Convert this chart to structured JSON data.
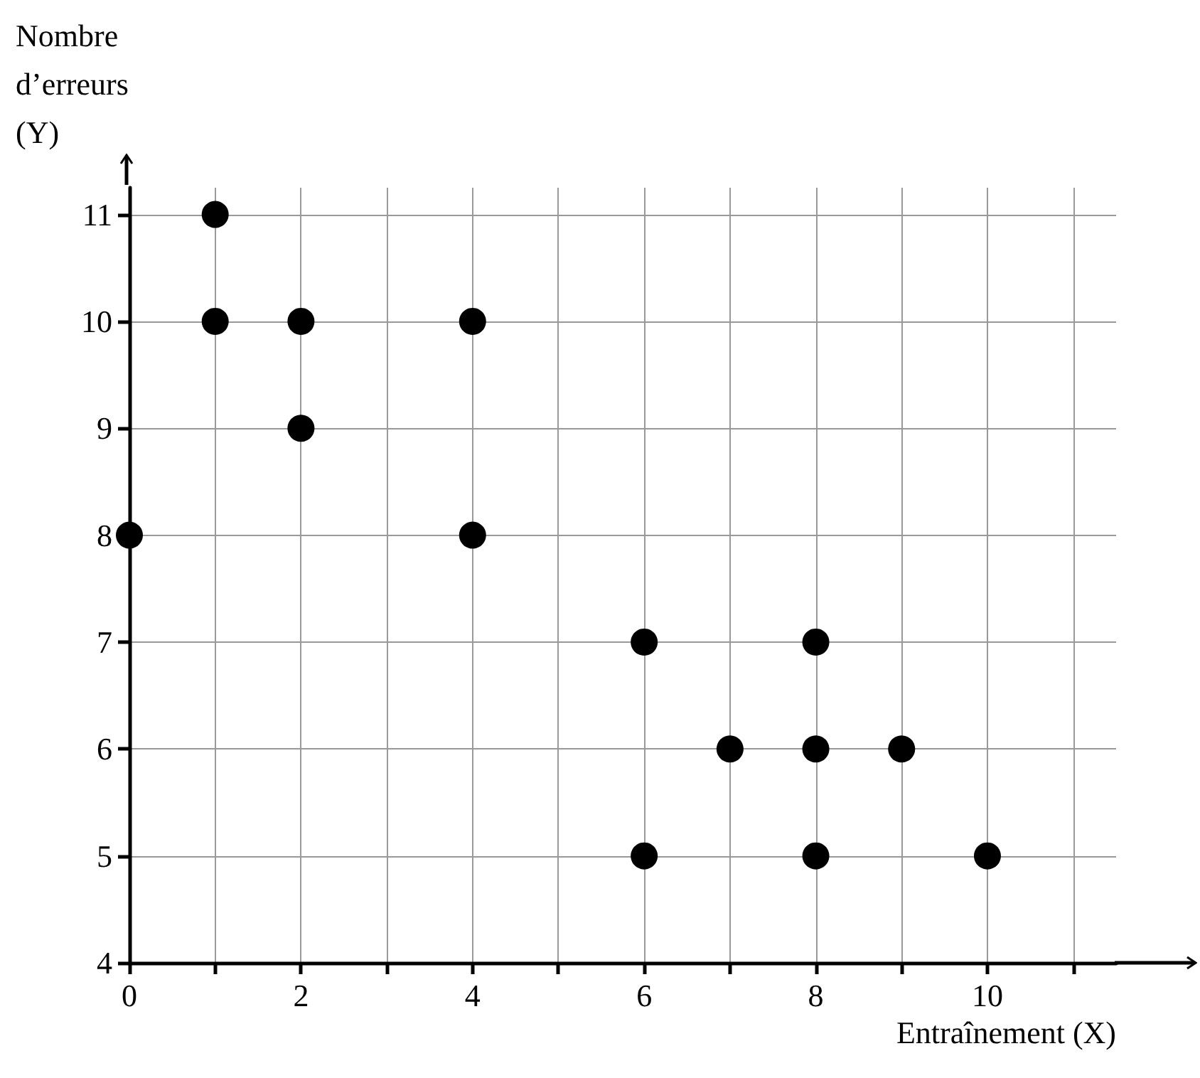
{
  "chart_data": {
    "type": "scatter",
    "xlabel": "Entraînement (X)",
    "ylabel": "Nombre\nd’erreurs\n(Y)",
    "x": [
      0,
      1,
      1,
      2,
      2,
      4,
      4,
      6,
      6,
      7,
      8,
      8,
      8,
      9,
      10
    ],
    "values": [
      8,
      11,
      10,
      10,
      9,
      10,
      8,
      7,
      5,
      6,
      7,
      6,
      5,
      6,
      5
    ],
    "color": "#000000",
    "marker": "circle",
    "xlim": [
      0,
      11.5
    ],
    "xticks": [
      0,
      {
        "value": 1,
        "label": null
      },
      2,
      {
        "value": 3,
        "label": null
      },
      4,
      {
        "value": 5,
        "label": null
      },
      6,
      {
        "value": 7,
        "label": null
      },
      8,
      {
        "value": 9,
        "label": null
      },
      10,
      {
        "value": 11,
        "label": null
      }
    ],
    "ylim": [
      4,
      11.25
    ],
    "yticks": [
      4,
      5,
      6,
      7,
      8,
      9,
      10,
      11
    ],
    "grid": true
  }
}
